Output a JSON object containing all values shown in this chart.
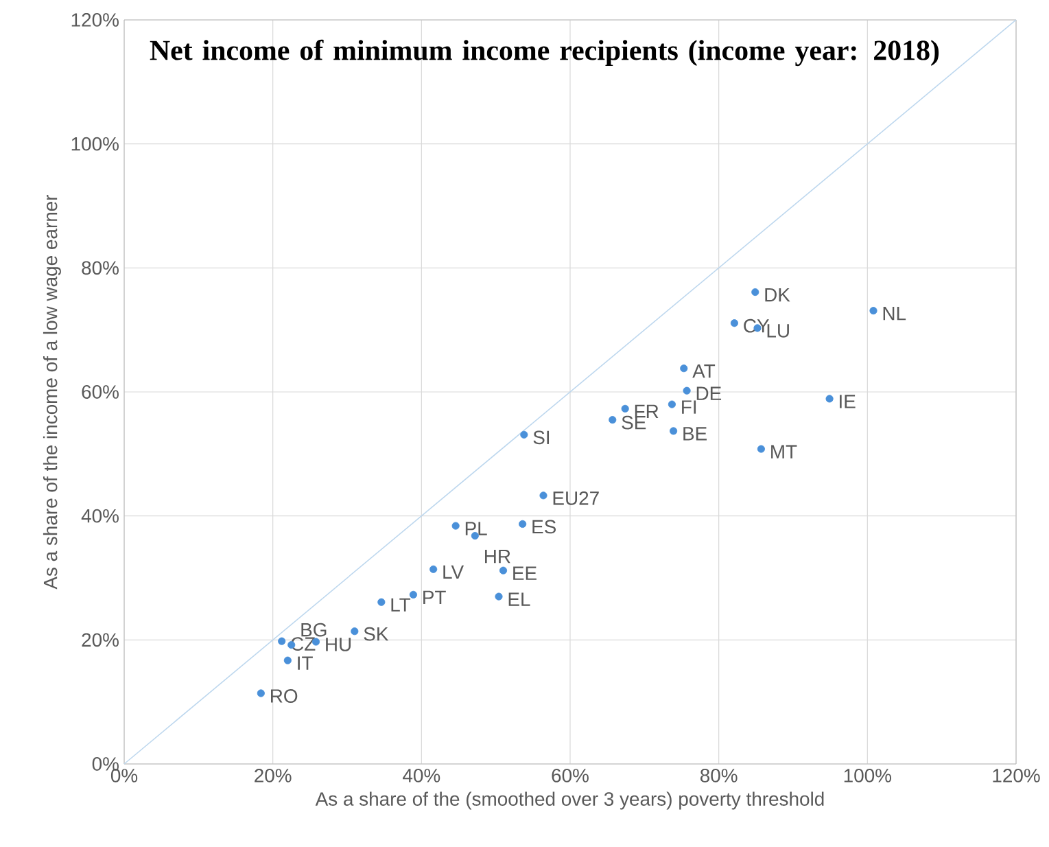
{
  "chart_data": {
    "type": "scatter",
    "title": "Net income of minimum income recipients (income year: 2018)",
    "xlabel": "As a share of the (smoothed over 3 years) poverty threshold",
    "ylabel": "As a share of the income of a low wage earner",
    "xlim": [
      0,
      120
    ],
    "ylim": [
      0,
      120
    ],
    "xticks": [
      {
        "value": 0,
        "label": "0%"
      },
      {
        "value": 20,
        "label": "20%"
      },
      {
        "value": 40,
        "label": "40%"
      },
      {
        "value": 60,
        "label": "60%"
      },
      {
        "value": 80,
        "label": "80%"
      },
      {
        "value": 100,
        "label": "100%"
      },
      {
        "value": 120,
        "label": "120%"
      }
    ],
    "yticks": [
      {
        "value": 0,
        "label": "0%"
      },
      {
        "value": 20,
        "label": "20%"
      },
      {
        "value": 40,
        "label": "40%"
      },
      {
        "value": 60,
        "label": "60%"
      },
      {
        "value": 80,
        "label": "80%"
      },
      {
        "value": 100,
        "label": "100%"
      },
      {
        "value": 120,
        "label": "120%"
      }
    ],
    "grid": true,
    "marker": "circle",
    "series": [
      {
        "color": "#4a90d9",
        "x": [
          84.9,
          100.8,
          82.1,
          85.2,
          75.3,
          75.7,
          94.9,
          67.4,
          73.7,
          65.7,
          73.9,
          53.8,
          85.7,
          56.4,
          44.6,
          53.6,
          47.2,
          41.6,
          51.0,
          38.9,
          50.4,
          34.6,
          31.0,
          21.2,
          22.5,
          25.8,
          22.0,
          18.4
        ],
        "values": [
          76.1,
          73.1,
          71.1,
          70.3,
          63.8,
          60.2,
          58.9,
          57.3,
          58.0,
          55.5,
          53.7,
          53.1,
          50.8,
          43.3,
          38.4,
          38.7,
          36.8,
          31.4,
          31.2,
          27.3,
          27.0,
          26.1,
          21.4,
          19.8,
          19.2,
          19.7,
          16.7,
          11.4
        ]
      },
      {
        "type": "line",
        "color": "#bdd7ee",
        "marker": "none",
        "x": [
          0,
          120
        ],
        "values": [
          0,
          120
        ]
      }
    ],
    "annotations": [
      {
        "text": "DK",
        "x": 84.9,
        "y": 76.1
      },
      {
        "text": "NL",
        "x": 100.8,
        "y": 73.1
      },
      {
        "text": "CY",
        "x": 82.1,
        "y": 71.1
      },
      {
        "text": "LU",
        "x": 85.2,
        "y": 70.3
      },
      {
        "text": "AT",
        "x": 75.3,
        "y": 63.8
      },
      {
        "text": "DE",
        "x": 75.7,
        "y": 60.2
      },
      {
        "text": "IE",
        "x": 94.9,
        "y": 58.9
      },
      {
        "text": "FR",
        "x": 67.4,
        "y": 57.3
      },
      {
        "text": "FI",
        "x": 73.7,
        "y": 58.0
      },
      {
        "text": "SE",
        "x": 65.7,
        "y": 55.5
      },
      {
        "text": "BE",
        "x": 73.9,
        "y": 53.7
      },
      {
        "text": "SI",
        "x": 53.8,
        "y": 53.1
      },
      {
        "text": "MT",
        "x": 85.7,
        "y": 50.8
      },
      {
        "text": "EU27",
        "x": 56.4,
        "y": 43.3
      },
      {
        "text": "PL",
        "x": 44.6,
        "y": 38.4
      },
      {
        "text": "ES",
        "x": 53.6,
        "y": 38.7
      },
      {
        "text": "HR",
        "x": 47.2,
        "y": 36.8
      },
      {
        "text": "LV",
        "x": 41.6,
        "y": 31.4
      },
      {
        "text": "EE",
        "x": 51.0,
        "y": 31.2
      },
      {
        "text": "PT",
        "x": 38.9,
        "y": 27.3
      },
      {
        "text": "EL",
        "x": 50.4,
        "y": 27.0
      },
      {
        "text": "LT",
        "x": 34.6,
        "y": 26.1
      },
      {
        "text": "SK",
        "x": 31.0,
        "y": 21.4
      },
      {
        "text": "CZ",
        "x": 21.2,
        "y": 19.8
      },
      {
        "text": "BG",
        "x": 22.5,
        "y": 19.2
      },
      {
        "text": "HU",
        "x": 25.8,
        "y": 19.7
      },
      {
        "text": "IT",
        "x": 22.0,
        "y": 16.7
      },
      {
        "text": "RO",
        "x": 18.4,
        "y": 11.4
      }
    ]
  }
}
